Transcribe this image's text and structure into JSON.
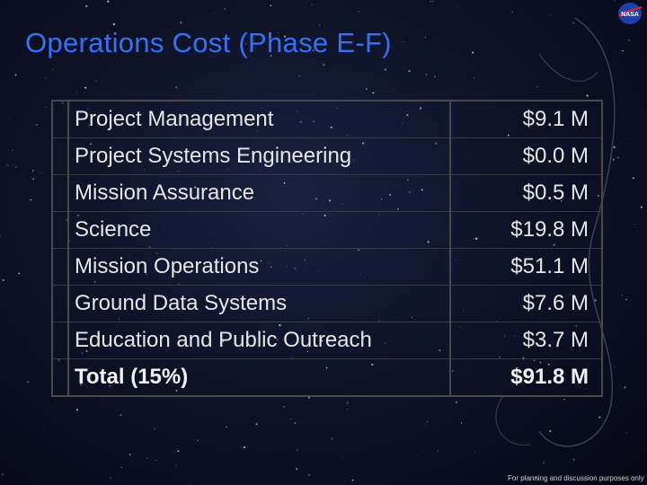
{
  "slide": {
    "title": "Operations Cost (Phase E-F)",
    "footer": "For planning and discussion purposes only"
  },
  "logo": {
    "icon": "nasa-logo-icon",
    "text": "NASA"
  },
  "table": {
    "rows": [
      {
        "label": "Project Management",
        "value": "$9.1 M"
      },
      {
        "label": "Project Systems Engineering",
        "value": "$0.0 M"
      },
      {
        "label": "Mission Assurance",
        "value": "$0.5 M"
      },
      {
        "label": "Science",
        "value": "$19.8 M"
      },
      {
        "label": "Mission Operations",
        "value": "$51.1 M"
      },
      {
        "label": "Ground Data Systems",
        "value": "$7.6 M"
      },
      {
        "label": "Education and Public Outreach",
        "value": "$3.7 M"
      }
    ],
    "total": {
      "label": "Total (15%)",
      "value": "$91.8 M"
    }
  }
}
